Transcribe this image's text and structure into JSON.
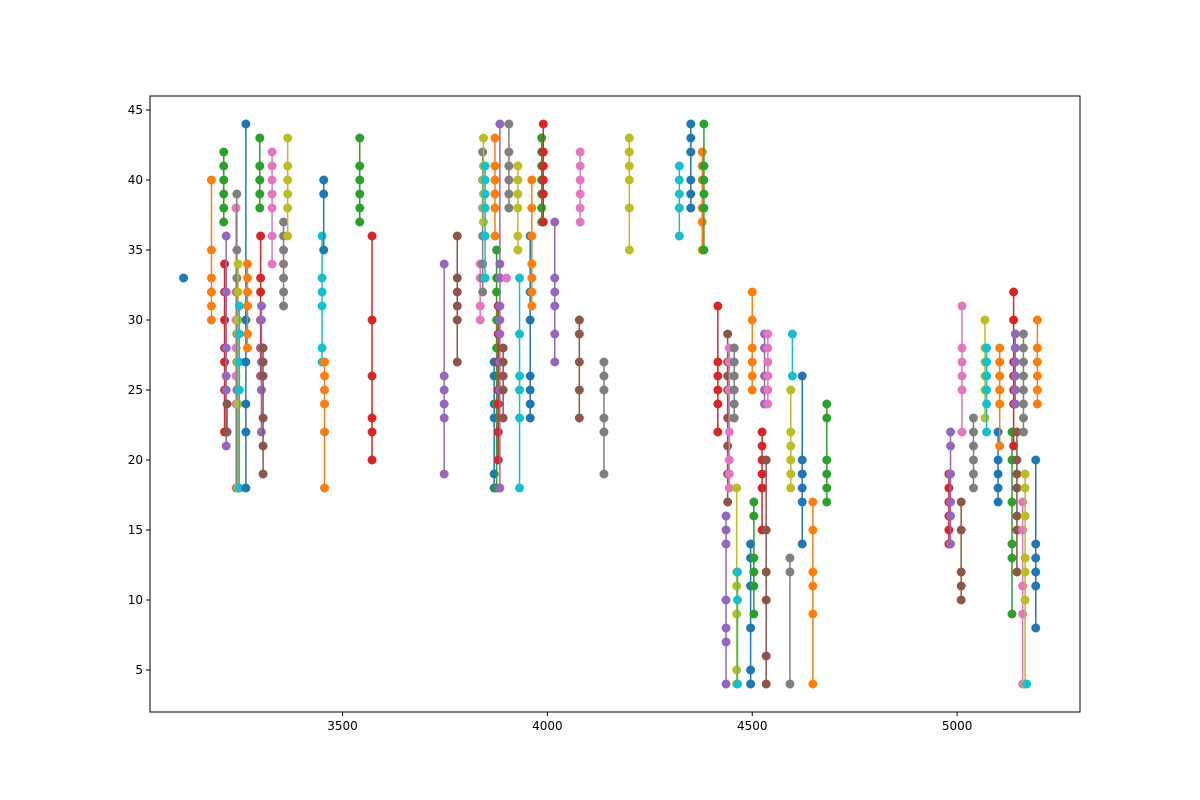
{
  "chart_data": {
    "type": "line",
    "title": "",
    "xlabel": "",
    "ylabel": "",
    "xlim": [
      3030,
      5300
    ],
    "ylim": [
      2,
      46
    ],
    "grid": false,
    "legend": "none",
    "x_ticks": [
      3500,
      4000,
      4500,
      5000
    ],
    "x_tick_labels": [
      "3500",
      "4000",
      "4500",
      "5000"
    ],
    "y_ticks": [
      5,
      10,
      15,
      20,
      25,
      30,
      35,
      40,
      45
    ],
    "y_tick_labels": [
      "5",
      "10",
      "15",
      "20",
      "25",
      "30",
      "35",
      "40",
      "45"
    ],
    "colors": [
      "#1f77b4",
      "#ff7f0e",
      "#2ca02c",
      "#d62728",
      "#9467bd",
      "#8c564b",
      "#e377c2",
      "#7f7f7f",
      "#bcbd22",
      "#17becf"
    ],
    "series": [
      {
        "x": 3112,
        "y": [
          33
        ]
      },
      {
        "x": 3180,
        "y": [
          30,
          31,
          32,
          33,
          35,
          40
        ]
      },
      {
        "x": 3210,
        "y": [
          37,
          38,
          39,
          40,
          41,
          42
        ]
      },
      {
        "x": 3212,
        "y": [
          22,
          25,
          27,
          28,
          30,
          32,
          34
        ]
      },
      {
        "x": 3216,
        "y": [
          21,
          25,
          26,
          28,
          32,
          36
        ]
      },
      {
        "x": 3218,
        "y": [
          22,
          24
        ]
      },
      {
        "x": 3240,
        "y": [
          18,
          24,
          26,
          28,
          30,
          32,
          38
        ]
      },
      {
        "x": 3242,
        "y": [
          18,
          25,
          27,
          29,
          32,
          33,
          35,
          39
        ]
      },
      {
        "x": 3245,
        "y": [
          18,
          24,
          27,
          29,
          30,
          32,
          34
        ]
      },
      {
        "x": 3248,
        "y": [
          18,
          25,
          27,
          29,
          31
        ]
      },
      {
        "x": 3264,
        "y": [
          18,
          22,
          24,
          27,
          30,
          44
        ]
      },
      {
        "x": 3268,
        "y": [
          28,
          29,
          31,
          32,
          33,
          34
        ]
      },
      {
        "x": 3298,
        "y": [
          38,
          39,
          40,
          41,
          43
        ]
      },
      {
        "x": 3300,
        "y": [
          26,
          28,
          30,
          32,
          33,
          36
        ]
      },
      {
        "x": 3302,
        "y": [
          22,
          25,
          26,
          27,
          28,
          30,
          31
        ]
      },
      {
        "x": 3306,
        "y": [
          19,
          21,
          23,
          26,
          27,
          28
        ]
      },
      {
        "x": 3328,
        "y": [
          34,
          36,
          38,
          39,
          40,
          41,
          42
        ]
      },
      {
        "x": 3356,
        "y": [
          31,
          32,
          33,
          34,
          35,
          36,
          37
        ]
      },
      {
        "x": 3366,
        "y": [
          36,
          38,
          39,
          40,
          41,
          43
        ]
      },
      {
        "x": 3450,
        "y": [
          27,
          28,
          31,
          32,
          33,
          36
        ]
      },
      {
        "x": 3454,
        "y": [
          35,
          39,
          40
        ]
      },
      {
        "x": 3456,
        "y": [
          18,
          22,
          24,
          25,
          26,
          27
        ]
      },
      {
        "x": 3542,
        "y": [
          37,
          38,
          39,
          40,
          41,
          43
        ]
      },
      {
        "x": 3572,
        "y": [
          20,
          22,
          23,
          26,
          30,
          36
        ]
      },
      {
        "x": 3748,
        "y": [
          19,
          23,
          24,
          25,
          26,
          34
        ]
      },
      {
        "x": 3780,
        "y": [
          27,
          30,
          31,
          32,
          33,
          36
        ]
      },
      {
        "x": 3836,
        "y": [
          30,
          31,
          33,
          34
        ]
      },
      {
        "x": 3842,
        "y": [
          32,
          33,
          34,
          36,
          38,
          40,
          42
        ]
      },
      {
        "x": 3844,
        "y": [
          37,
          38,
          39,
          40,
          41,
          43
        ]
      },
      {
        "x": 3848,
        "y": [
          33,
          36,
          38,
          39,
          40,
          41
        ]
      },
      {
        "x": 3870,
        "y": [
          18,
          19,
          23,
          24,
          26,
          27
        ]
      },
      {
        "x": 3872,
        "y": [
          36,
          38,
          39,
          40,
          41,
          43
        ]
      },
      {
        "x": 3876,
        "y": [
          18,
          24,
          28,
          30,
          32,
          33,
          35
        ]
      },
      {
        "x": 3880,
        "y": [
          20,
          22,
          24,
          25,
          27,
          29,
          31
        ]
      },
      {
        "x": 3884,
        "y": [
          18,
          25,
          27,
          29,
          30,
          31,
          33,
          34,
          44
        ]
      },
      {
        "x": 3892,
        "y": [
          23,
          25,
          26,
          27,
          28
        ]
      },
      {
        "x": 3900,
        "y": [
          33
        ]
      },
      {
        "x": 3906,
        "y": [
          38,
          39,
          40,
          41,
          42,
          44
        ]
      },
      {
        "x": 3928,
        "y": [
          35,
          36,
          38,
          39,
          40,
          41
        ]
      },
      {
        "x": 3932,
        "y": [
          18,
          23,
          25,
          26,
          29,
          33
        ]
      },
      {
        "x": 3958,
        "y": [
          23,
          24,
          25,
          26,
          30,
          32,
          36
        ]
      },
      {
        "x": 3962,
        "y": [
          31,
          32,
          33,
          34,
          36,
          38,
          40
        ]
      },
      {
        "x": 3986,
        "y": [
          37,
          38,
          39,
          40,
          41,
          42,
          43
        ]
      },
      {
        "x": 3990,
        "y": [
          37,
          39,
          40,
          41,
          42,
          44
        ]
      },
      {
        "x": 4018,
        "y": [
          27,
          29,
          31,
          32,
          33,
          37
        ]
      },
      {
        "x": 4078,
        "y": [
          23,
          25,
          27,
          29,
          30
        ]
      },
      {
        "x": 4080,
        "y": [
          37,
          38,
          39,
          40,
          41,
          42
        ]
      },
      {
        "x": 4138,
        "y": [
          19,
          22,
          23,
          25,
          26,
          27
        ]
      },
      {
        "x": 4200,
        "y": [
          35,
          38,
          40,
          41,
          42,
          43
        ]
      },
      {
        "x": 4322,
        "y": [
          36,
          38,
          39,
          40,
          41
        ]
      },
      {
        "x": 4350,
        "y": [
          38,
          39,
          40,
          42,
          43,
          44
        ]
      },
      {
        "x": 4378,
        "y": [
          35,
          37,
          38,
          40,
          41,
          42
        ]
      },
      {
        "x": 4382,
        "y": [
          35,
          38,
          39,
          40,
          41,
          44
        ]
      },
      {
        "x": 4416,
        "y": [
          22,
          24,
          25,
          26,
          27,
          31
        ]
      },
      {
        "x": 4436,
        "y": [
          4,
          7,
          8,
          10,
          14,
          15,
          16
        ]
      },
      {
        "x": 4440,
        "y": [
          17,
          19,
          21,
          23,
          25,
          26,
          27,
          29
        ]
      },
      {
        "x": 4444,
        "y": [
          18,
          19,
          20,
          22,
          25,
          27,
          28
        ]
      },
      {
        "x": 4456,
        "y": [
          23,
          24,
          25,
          26,
          27,
          28
        ]
      },
      {
        "x": 4462,
        "y": [
          4,
          5,
          9,
          11,
          12,
          18
        ]
      },
      {
        "x": 4464,
        "y": [
          4,
          10,
          12
        ]
      },
      {
        "x": 4496,
        "y": [
          4,
          5,
          8,
          11,
          13,
          14
        ]
      },
      {
        "x": 4500,
        "y": [
          25,
          26,
          27,
          28,
          30,
          32
        ]
      },
      {
        "x": 4504,
        "y": [
          9,
          11,
          12,
          13,
          16,
          17
        ]
      },
      {
        "x": 4524,
        "y": [
          15,
          18,
          19,
          20,
          21,
          22
        ]
      },
      {
        "x": 4530,
        "y": [
          24,
          25,
          26,
          28,
          29
        ]
      },
      {
        "x": 4534,
        "y": [
          4,
          6,
          10,
          12,
          15,
          20
        ]
      },
      {
        "x": 4538,
        "y": [
          24,
          25,
          26,
          27,
          28,
          29
        ]
      },
      {
        "x": 4592,
        "y": [
          4,
          12,
          13
        ]
      },
      {
        "x": 4594,
        "y": [
          18,
          19,
          20,
          21,
          22,
          25
        ]
      },
      {
        "x": 4598,
        "y": [
          26,
          29
        ]
      },
      {
        "x": 4622,
        "y": [
          14,
          17,
          18,
          19,
          20,
          26
        ]
      },
      {
        "x": 4648,
        "y": [
          4,
          9,
          11,
          12,
          15,
          17
        ]
      },
      {
        "x": 4682,
        "y": [
          17,
          18,
          19,
          20,
          23,
          24
        ]
      },
      {
        "x": 4980,
        "y": [
          14,
          15,
          16,
          17,
          18,
          19
        ]
      },
      {
        "x": 4984,
        "y": [
          14,
          16,
          17,
          19,
          21,
          22
        ]
      },
      {
        "x": 5010,
        "y": [
          10,
          11,
          12,
          15,
          17
        ]
      },
      {
        "x": 5012,
        "y": [
          22,
          25,
          26,
          27,
          28,
          31
        ]
      },
      {
        "x": 5040,
        "y": [
          18,
          19,
          20,
          21,
          22,
          23
        ]
      },
      {
        "x": 5068,
        "y": [
          23,
          25,
          26,
          27,
          28,
          30
        ]
      },
      {
        "x": 5072,
        "y": [
          22,
          24,
          25,
          26,
          27,
          28
        ]
      },
      {
        "x": 5100,
        "y": [
          17,
          18,
          19,
          20,
          22
        ]
      },
      {
        "x": 5104,
        "y": [
          21,
          24,
          25,
          26,
          27,
          28
        ]
      },
      {
        "x": 5134,
        "y": [
          9,
          13,
          14,
          17,
          20,
          22
        ]
      },
      {
        "x": 5138,
        "y": [
          21,
          24,
          25,
          26,
          27,
          30,
          32
        ]
      },
      {
        "x": 5142,
        "y": [
          24,
          25,
          26,
          27,
          28,
          29
        ]
      },
      {
        "x": 5146,
        "y": [
          12,
          15,
          16,
          18,
          19,
          20,
          22
        ]
      },
      {
        "x": 5160,
        "y": [
          4,
          9,
          11,
          15,
          17
        ]
      },
      {
        "x": 5162,
        "y": [
          22,
          23,
          24,
          25,
          26,
          27,
          28,
          29
        ]
      },
      {
        "x": 5166,
        "y": [
          4,
          10,
          12,
          13,
          16,
          18,
          19
        ]
      },
      {
        "x": 5170,
        "y": [
          4
        ]
      },
      {
        "x": 5192,
        "y": [
          8,
          11,
          12,
          13,
          14,
          20
        ]
      },
      {
        "x": 5196,
        "y": [
          24,
          25,
          26,
          27,
          28,
          30
        ]
      }
    ]
  }
}
